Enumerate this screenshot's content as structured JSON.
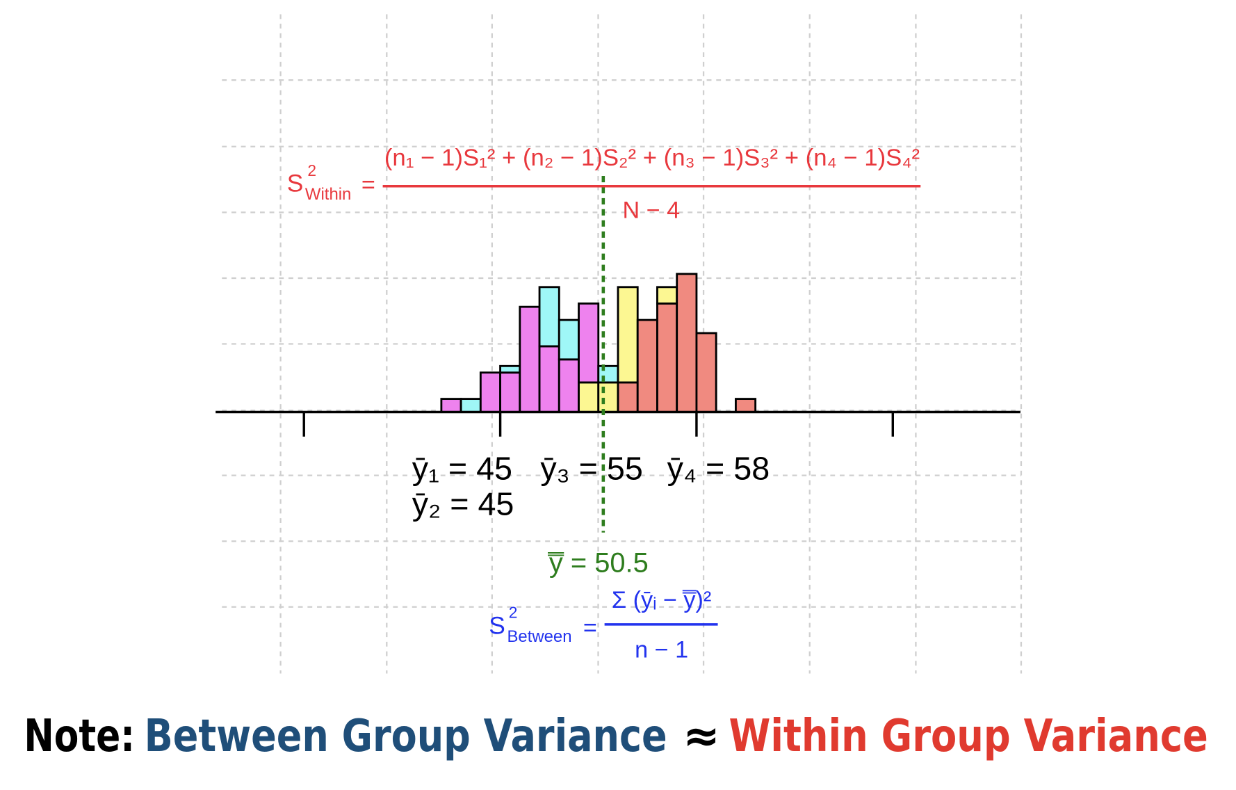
{
  "chart_data": {
    "type": "histogram",
    "bins": [
      34,
      36,
      38,
      40,
      42,
      44,
      46,
      48,
      50,
      52,
      54,
      56,
      58,
      60,
      62,
      64,
      66
    ],
    "series": [
      {
        "color": "#f08a80",
        "values": [
          0,
          0,
          0,
          0,
          0,
          0,
          0,
          0,
          0,
          4.5,
          14,
          16.5,
          21,
          12,
          0,
          2
        ]
      },
      {
        "color": "#fcf792",
        "values": [
          0,
          0,
          0,
          0,
          0,
          0,
          0,
          4.5,
          4.5,
          14.5,
          0,
          2.5,
          0,
          0,
          0,
          0
        ]
      },
      {
        "color": "#ee82ee",
        "values": [
          2,
          0,
          6,
          6,
          16,
          10,
          8,
          12,
          0,
          0,
          0,
          0,
          0,
          0,
          0,
          0
        ]
      },
      {
        "color": "#9ff7f7",
        "values": [
          0,
          2,
          0,
          1,
          0,
          9,
          6,
          0,
          2.5,
          0,
          0,
          0,
          0,
          0,
          0,
          0
        ]
      }
    ],
    "stacked": true,
    "xlim": [
      11,
      93
    ],
    "xticks": [
      20,
      40,
      60,
      80
    ],
    "ylim": [
      0,
      25
    ],
    "reference_line": {
      "value": 50.5,
      "color": "#2e7d1e"
    },
    "annotations": {
      "mean_1": "ȳ₁ = 45",
      "mean_2": "ȳ₂ = 45",
      "mean_3": "ȳ₃ = 55",
      "mean_4": "ȳ₄ = 58",
      "grand_mean": "y̿ = 50.5"
    },
    "within_formula": {
      "symbol": "S",
      "sup": "2",
      "sub": "Within",
      "equals": "=",
      "numerator": "(n₁ − 1)S₁² + (n₂ − 1)S₂² + (n₃ − 1)S₃² + (n₄ − 1)S₄²",
      "denominator": "N − 4"
    },
    "between_formula": {
      "symbol": "S",
      "sup": "2",
      "sub": "Between",
      "equals": "=",
      "numerator": "Σ (ȳᵢ − y̿)²",
      "denominator": "n − 1"
    }
  },
  "note": {
    "label": "Note:",
    "left": "Between Group Variance",
    "relation": "≈",
    "right": "Within Group Variance"
  }
}
